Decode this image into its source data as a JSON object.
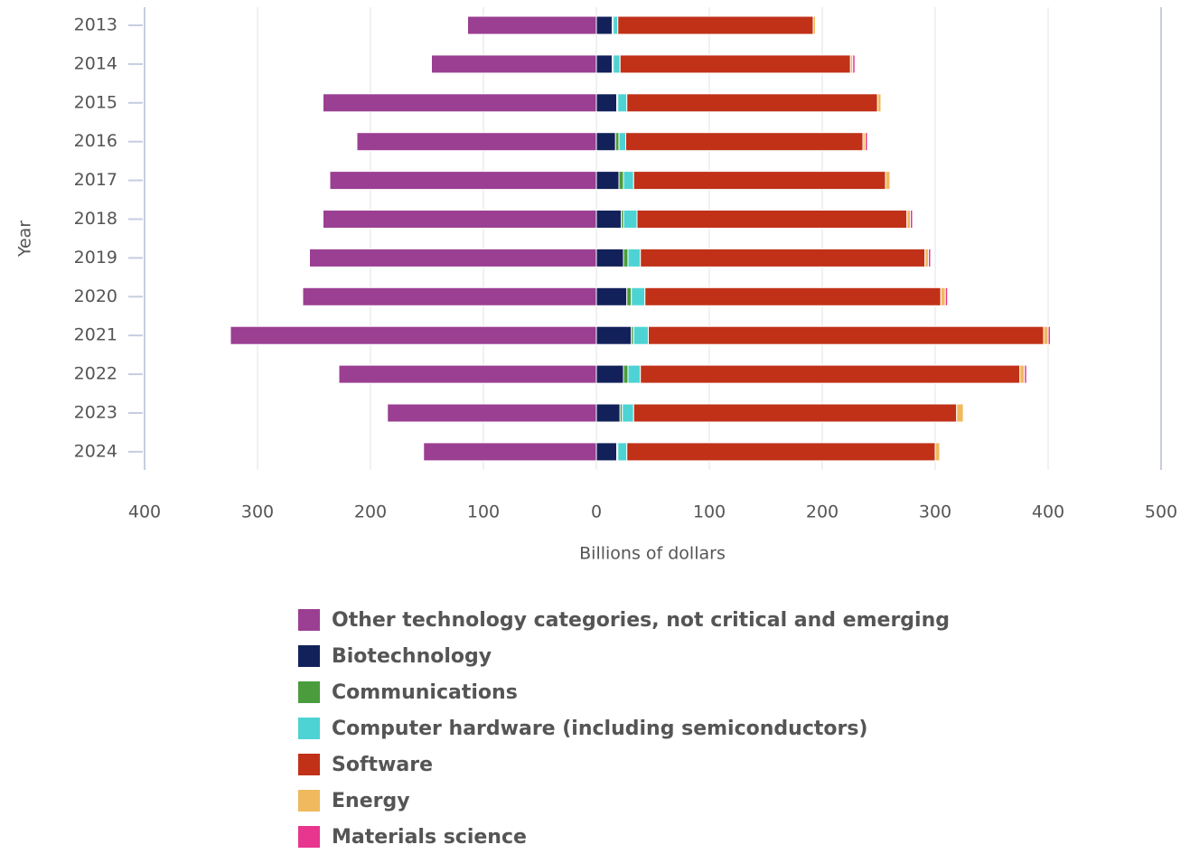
{
  "chart_data": {
    "type": "bar",
    "orientation": "horizontal",
    "stacked": true,
    "x_label": "Billions of dollars",
    "y_label": "Year",
    "categories": [
      "2013",
      "2014",
      "2015",
      "2016",
      "2017",
      "2018",
      "2019",
      "2020",
      "2021",
      "2022",
      "2023",
      "2024"
    ],
    "series": [
      {
        "name": "Other technology categories, not critical and emerging",
        "color": "#9b3f93",
        "values": [
          -114,
          -146,
          -242,
          -212,
          -236,
          -242,
          -254,
          -260,
          -324,
          -228,
          -185,
          -153
        ]
      },
      {
        "name": "Biotechnology",
        "color": "#13215a",
        "values": [
          14,
          14,
          18,
          17,
          20,
          22,
          24,
          27,
          31,
          24,
          21,
          18
        ]
      },
      {
        "name": "Communications",
        "color": "#4a9c3c",
        "values": [
          1,
          1,
          1,
          3,
          4,
          2,
          4,
          4,
          2,
          4,
          2,
          1
        ]
      },
      {
        "name": "Computer hardware (including semiconductors)",
        "color": "#4dd3d3",
        "values": [
          4,
          6,
          8,
          6,
          9,
          12,
          11,
          12,
          13,
          11,
          10,
          8
        ]
      },
      {
        "name": "Software",
        "color": "#c03118",
        "values": [
          173,
          204,
          222,
          210,
          223,
          239,
          252,
          262,
          350,
          336,
          286,
          273
        ]
      },
      {
        "name": "Energy",
        "color": "#f0b95e",
        "values": [
          2,
          2,
          3,
          2,
          4,
          3,
          3,
          4,
          4,
          4,
          6,
          4
        ]
      },
      {
        "name": "Materials science",
        "color": "#e8358e",
        "values": [
          0.5,
          2,
          0.5,
          2,
          0.5,
          2,
          2,
          2,
          2,
          2,
          0.5,
          0
        ]
      }
    ],
    "xlim": [
      -400,
      500
    ],
    "xticks": [
      {
        "value": -400,
        "label": "400"
      },
      {
        "value": -300,
        "label": "300"
      },
      {
        "value": -200,
        "label": "200"
      },
      {
        "value": -100,
        "label": "100"
      },
      0,
      100,
      200,
      300,
      400,
      500
    ],
    "grid": true
  }
}
